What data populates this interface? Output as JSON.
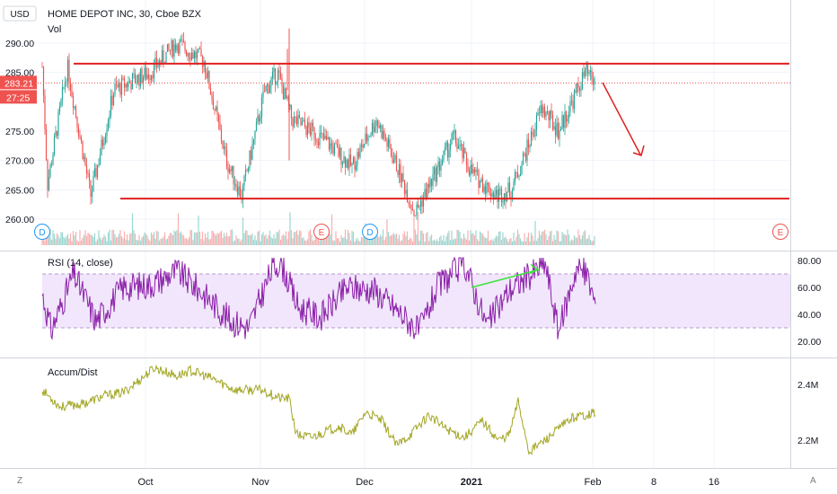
{
  "header": {
    "currency": "USD",
    "title": "HOME DEPOT INC, 30, Cboe BZX",
    "vol_label": "Vol"
  },
  "price_axis": {
    "ticks": [
      {
        "value": 290,
        "label": "290.00"
      },
      {
        "value": 285,
        "label": "285.00"
      },
      {
        "value": 275,
        "label": "275.00"
      },
      {
        "value": 270,
        "label": "270.00"
      },
      {
        "value": 265,
        "label": "265.00"
      },
      {
        "value": 260,
        "label": "260.00"
      }
    ],
    "last_price": {
      "value": 283.21,
      "label": "283.21"
    },
    "countdown": "27:25"
  },
  "rsi": {
    "label": "RSI (14, close)",
    "ticks": [
      {
        "value": 80,
        "label": "80.00"
      },
      {
        "value": 60,
        "label": "60.00"
      },
      {
        "value": 40,
        "label": "40.00"
      },
      {
        "value": 20,
        "label": "20.00"
      }
    ],
    "band_upper": 70,
    "band_lower": 30
  },
  "ad": {
    "label": "Accum/Dist",
    "ticks": [
      {
        "value": 2.4,
        "label": "2.4M"
      },
      {
        "value": 2.2,
        "label": "2.2M"
      }
    ]
  },
  "time_axis": {
    "labels": [
      "Oct",
      "Nov",
      "Dec",
      "2021",
      "Feb",
      "8",
      "16"
    ]
  },
  "event_markers": [
    {
      "kind": "dividend",
      "text": "D"
    },
    {
      "kind": "earnings",
      "text": "E"
    },
    {
      "kind": "dividend",
      "text": "D"
    },
    {
      "kind": "earnings",
      "text": "E"
    }
  ],
  "corner_buttons": {
    "left": "Z",
    "right": "A"
  },
  "colors": {
    "up": "#26a69a",
    "down": "#ef5350",
    "drawing": "#e02020",
    "rsi_line": "#8b1fa8",
    "rsi_band": "#f1e6fb",
    "ad_line": "#a3a625",
    "trend_green": "#3ce33c",
    "dividend": "#2196f3"
  },
  "chart_data": [
    {
      "type": "candlestick",
      "title": "HOME DEPOT INC, 30, Cboe BZX",
      "ylim": [
        256,
        293
      ],
      "x_axis_labels": [
        "Oct",
        "Nov",
        "Dec",
        "2021",
        "Feb",
        "8",
        "16"
      ],
      "price_path_keypoints": [
        {
          "t": 0,
          "close": 286
        },
        {
          "t": 6,
          "close": 266
        },
        {
          "t": 28,
          "close": 286
        },
        {
          "t": 54,
          "close": 264
        },
        {
          "t": 80,
          "close": 282
        },
        {
          "t": 120,
          "close": 285
        },
        {
          "t": 150,
          "close": 290
        },
        {
          "t": 180,
          "close": 287
        },
        {
          "t": 205,
          "close": 270
        },
        {
          "t": 222,
          "close": 264
        },
        {
          "t": 248,
          "close": 282
        },
        {
          "t": 262,
          "close": 285
        },
        {
          "t": 278,
          "close": 277
        },
        {
          "t": 300,
          "close": 275
        },
        {
          "t": 318,
          "close": 273
        },
        {
          "t": 345,
          "close": 269
        },
        {
          "t": 372,
          "close": 277
        },
        {
          "t": 395,
          "close": 269
        },
        {
          "t": 415,
          "close": 261
        },
        {
          "t": 432,
          "close": 266
        },
        {
          "t": 458,
          "close": 274
        },
        {
          "t": 478,
          "close": 268
        },
        {
          "t": 505,
          "close": 264
        },
        {
          "t": 522,
          "close": 265
        },
        {
          "t": 540,
          "close": 272
        },
        {
          "t": 556,
          "close": 279
        },
        {
          "t": 575,
          "close": 275
        },
        {
          "t": 605,
          "close": 285
        },
        {
          "t": 616,
          "close": 283
        }
      ],
      "annotations": [
        {
          "type": "horizontal-line",
          "value": 286.5,
          "note": "resistance"
        },
        {
          "type": "horizontal-line",
          "value": 263.5,
          "note": "support"
        },
        {
          "type": "arrow",
          "direction": "down-right"
        }
      ]
    },
    {
      "type": "line",
      "name": "RSI (14, close)",
      "ylim": [
        13,
        87
      ],
      "band": [
        30,
        70
      ],
      "keypoints": [
        {
          "t": 0,
          "y": 55
        },
        {
          "t": 10,
          "y": 28
        },
        {
          "t": 35,
          "y": 70
        },
        {
          "t": 60,
          "y": 35
        },
        {
          "t": 90,
          "y": 60
        },
        {
          "t": 120,
          "y": 62
        },
        {
          "t": 150,
          "y": 72
        },
        {
          "t": 180,
          "y": 55
        },
        {
          "t": 210,
          "y": 35
        },
        {
          "t": 230,
          "y": 30
        },
        {
          "t": 255,
          "y": 72
        },
        {
          "t": 265,
          "y": 80
        },
        {
          "t": 285,
          "y": 45
        },
        {
          "t": 310,
          "y": 38
        },
        {
          "t": 340,
          "y": 60
        },
        {
          "t": 370,
          "y": 58
        },
        {
          "t": 400,
          "y": 40
        },
        {
          "t": 420,
          "y": 27
        },
        {
          "t": 440,
          "y": 60
        },
        {
          "t": 470,
          "y": 78
        },
        {
          "t": 495,
          "y": 32
        },
        {
          "t": 520,
          "y": 58
        },
        {
          "t": 545,
          "y": 70
        },
        {
          "t": 560,
          "y": 78
        },
        {
          "t": 575,
          "y": 27
        },
        {
          "t": 595,
          "y": 75
        },
        {
          "t": 606,
          "y": 70
        },
        {
          "t": 616,
          "y": 48
        }
      ],
      "trendline_from": {
        "t": 478,
        "y": 60
      },
      "trendline_to": {
        "t": 552,
        "y": 73
      }
    },
    {
      "type": "line",
      "name": "Accum/Dist",
      "ylim": [
        2.12,
        2.48
      ],
      "keypoints": [
        {
          "t": 0,
          "y": 2.38
        },
        {
          "t": 20,
          "y": 2.32
        },
        {
          "t": 45,
          "y": 2.33
        },
        {
          "t": 70,
          "y": 2.36
        },
        {
          "t": 90,
          "y": 2.37
        },
        {
          "t": 110,
          "y": 2.42
        },
        {
          "t": 125,
          "y": 2.46
        },
        {
          "t": 150,
          "y": 2.43
        },
        {
          "t": 165,
          "y": 2.45
        },
        {
          "t": 190,
          "y": 2.42
        },
        {
          "t": 215,
          "y": 2.38
        },
        {
          "t": 245,
          "y": 2.38
        },
        {
          "t": 265,
          "y": 2.35
        },
        {
          "t": 275,
          "y": 2.35
        },
        {
          "t": 283,
          "y": 2.22
        },
        {
          "t": 300,
          "y": 2.21
        },
        {
          "t": 330,
          "y": 2.25
        },
        {
          "t": 345,
          "y": 2.22
        },
        {
          "t": 360,
          "y": 2.3
        },
        {
          "t": 378,
          "y": 2.27
        },
        {
          "t": 395,
          "y": 2.18
        },
        {
          "t": 410,
          "y": 2.22
        },
        {
          "t": 430,
          "y": 2.29
        },
        {
          "t": 450,
          "y": 2.24
        },
        {
          "t": 470,
          "y": 2.21
        },
        {
          "t": 490,
          "y": 2.27
        },
        {
          "t": 508,
          "y": 2.2
        },
        {
          "t": 520,
          "y": 2.22
        },
        {
          "t": 530,
          "y": 2.34
        },
        {
          "t": 542,
          "y": 2.16
        },
        {
          "t": 560,
          "y": 2.2
        },
        {
          "t": 575,
          "y": 2.24
        },
        {
          "t": 590,
          "y": 2.28
        },
        {
          "t": 616,
          "y": 2.3
        }
      ]
    }
  ]
}
